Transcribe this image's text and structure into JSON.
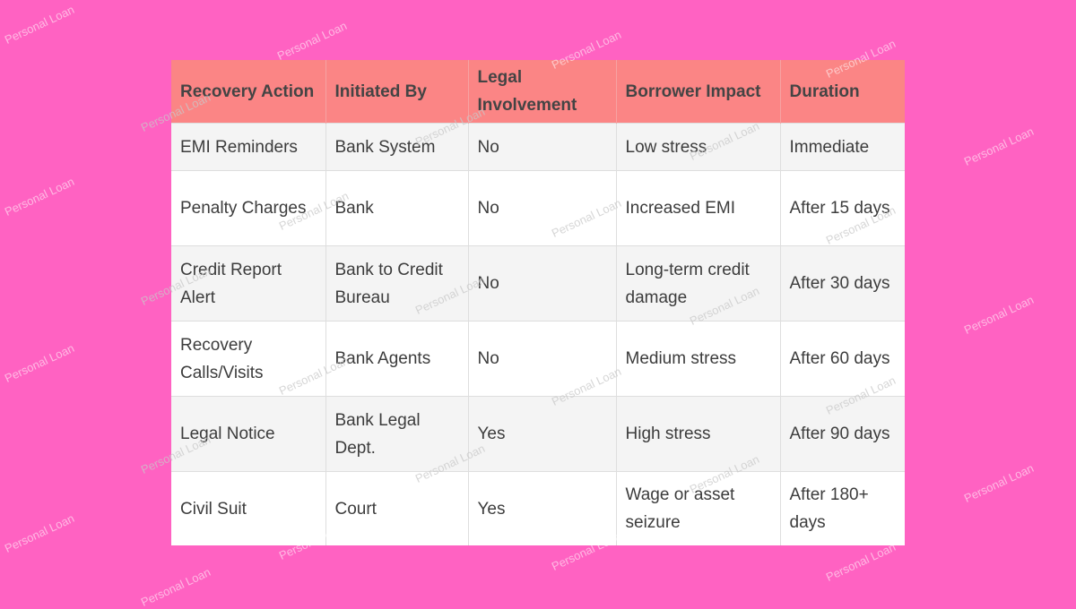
{
  "table": {
    "headers": [
      "Recovery Action",
      "Initiated By",
      "Legal Involvement",
      "Borrower Impact",
      "Duration"
    ],
    "rows": [
      [
        "EMI Reminders",
        "Bank System",
        "No",
        "Low stress",
        "Immediate"
      ],
      [
        "Penalty Charges",
        "Bank",
        "No",
        "Increased EMI",
        "After 15 days"
      ],
      [
        "Credit Report Alert",
        "Bank to Credit Bureau",
        "No",
        "Long-term credit damage",
        "After 30 days"
      ],
      [
        "Recovery Calls/Visits",
        "Bank Agents",
        "No",
        "Medium stress",
        "After 60 days"
      ],
      [
        "Legal Notice",
        "Bank Legal Dept.",
        "Yes",
        "High stress",
        "After 90 days"
      ],
      [
        "Civil Suit",
        "Court",
        "Yes",
        "Wage or asset seizure",
        "After 180+ days"
      ]
    ]
  },
  "watermark": {
    "text": "Personal Loan"
  },
  "colors": {
    "background": "#ff62c2",
    "header": "#fb8585",
    "row_alt": "#f4f4f4",
    "row": "#ffffff"
  }
}
